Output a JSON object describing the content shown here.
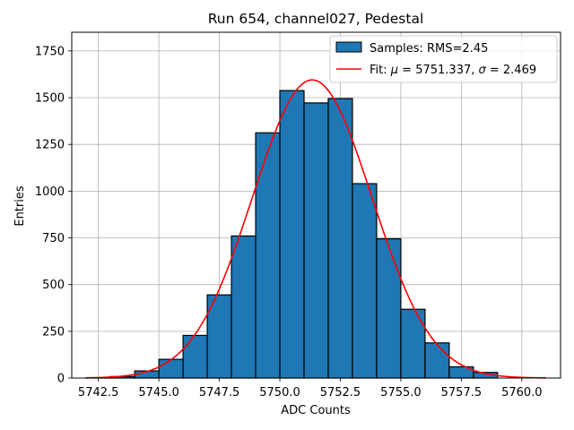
{
  "chart_data": {
    "type": "bar",
    "title": "Run 654, channel027, Pedestal",
    "xlabel": "ADC Counts",
    "ylabel": "Entries",
    "xlim": [
      5741.4,
      5761.6
    ],
    "ylim": [
      0,
      1850
    ],
    "grid": true,
    "legend_position": "top-right",
    "colors": {
      "bar": "#1f77b4",
      "edge": "#000000",
      "fit": "#ff0000",
      "grid": "#b0b0b0"
    },
    "x_ticks": [
      {
        "value": 5742.5,
        "label": "5742.5"
      },
      {
        "value": 5745.0,
        "label": "5745.0"
      },
      {
        "value": 5747.5,
        "label": "5747.5"
      },
      {
        "value": 5750.0,
        "label": "5750.0"
      },
      {
        "value": 5752.5,
        "label": "5752.5"
      },
      {
        "value": 5755.0,
        "label": "5755.0"
      },
      {
        "value": 5757.5,
        "label": "5757.5"
      },
      {
        "value": 5760.0,
        "label": "5760.0"
      }
    ],
    "y_ticks": [
      {
        "value": 0,
        "label": "0"
      },
      {
        "value": 250,
        "label": "250"
      },
      {
        "value": 500,
        "label": "500"
      },
      {
        "value": 750,
        "label": "750"
      },
      {
        "value": 1000,
        "label": "1000"
      },
      {
        "value": 1250,
        "label": "1250"
      },
      {
        "value": 1500,
        "label": "1500"
      },
      {
        "value": 1750,
        "label": "1750"
      }
    ],
    "histogram": {
      "name": "Samples: RMS=2.45",
      "bins": [
        {
          "x0": 5742,
          "x1": 5743,
          "value": 2
        },
        {
          "x0": 5743,
          "x1": 5744,
          "value": 8
        },
        {
          "x0": 5744,
          "x1": 5745,
          "value": 38
        },
        {
          "x0": 5745,
          "x1": 5746,
          "value": 100
        },
        {
          "x0": 5746,
          "x1": 5747,
          "value": 228
        },
        {
          "x0": 5747,
          "x1": 5748,
          "value": 445
        },
        {
          "x0": 5748,
          "x1": 5749,
          "value": 760
        },
        {
          "x0": 5749,
          "x1": 5750,
          "value": 1312
        },
        {
          "x0": 5750,
          "x1": 5751,
          "value": 1538
        },
        {
          "x0": 5751,
          "x1": 5752,
          "value": 1472
        },
        {
          "x0": 5752,
          "x1": 5753,
          "value": 1495
        },
        {
          "x0": 5753,
          "x1": 5754,
          "value": 1040
        },
        {
          "x0": 5754,
          "x1": 5755,
          "value": 745
        },
        {
          "x0": 5755,
          "x1": 5756,
          "value": 368
        },
        {
          "x0": 5756,
          "x1": 5757,
          "value": 188
        },
        {
          "x0": 5757,
          "x1": 5758,
          "value": 60
        },
        {
          "x0": 5758,
          "x1": 5759,
          "value": 30
        },
        {
          "x0": 5759,
          "x1": 5760,
          "value": 0
        },
        {
          "x0": 5760,
          "x1": 5761,
          "value": 0
        }
      ]
    },
    "fit": {
      "name_prefix": "Fit: ",
      "mu_symbol": "μ",
      "mu_text": " = 5751.337, ",
      "sigma_symbol": "σ",
      "sigma_text": " = 2.469",
      "mu": 5751.337,
      "sigma": 2.469,
      "amplitude": 1595,
      "x_range": [
        5742.0,
        5761.0
      ]
    }
  }
}
